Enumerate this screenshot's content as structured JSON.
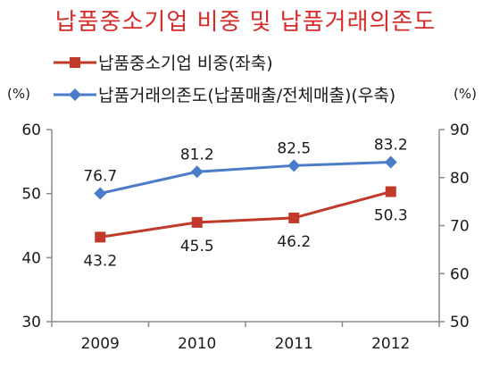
{
  "chart_data": {
    "type": "line",
    "title": "납품중소기업 비중 및 납품거래의존도",
    "categories": [
      "2009",
      "2010",
      "2011",
      "2012"
    ],
    "series": [
      {
        "name": "납품중소기업 비중(좌축)",
        "axis": "left",
        "color": "#c0392b",
        "marker": "square",
        "values": [
          43.2,
          45.5,
          46.2,
          50.3
        ]
      },
      {
        "name": "납품거래의존도(납품매출/전체매출)(우축)",
        "axis": "right",
        "color": "#4a7cc9",
        "marker": "diamond",
        "values": [
          76.7,
          81.2,
          82.5,
          83.2
        ]
      }
    ],
    "y_left": {
      "unit": "(%)",
      "range": [
        30,
        60
      ],
      "ticks": [
        "60",
        "50",
        "40",
        "30"
      ]
    },
    "y_right": {
      "unit": "(%)",
      "range": [
        50,
        90
      ],
      "ticks": [
        "90",
        "80",
        "70",
        "60",
        "50"
      ]
    },
    "grid": false,
    "legend_position": "top-left"
  }
}
